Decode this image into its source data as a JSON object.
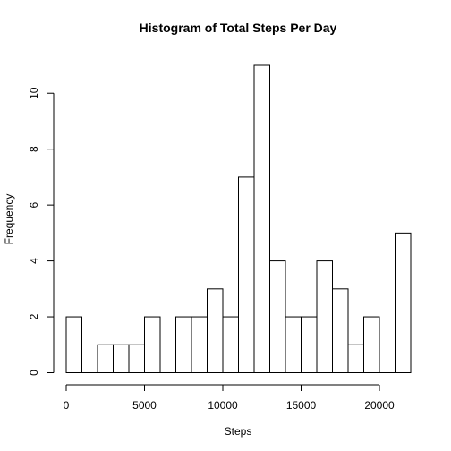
{
  "chart_data": {
    "type": "bar",
    "title": "Histogram of Total Steps Per Day",
    "xlabel": "Steps",
    "ylabel": "Frequency",
    "bin_width": 1000,
    "bins": [
      {
        "start": 0,
        "end": 1000,
        "count": 2
      },
      {
        "start": 1000,
        "end": 2000,
        "count": 0
      },
      {
        "start": 2000,
        "end": 3000,
        "count": 1
      },
      {
        "start": 3000,
        "end": 4000,
        "count": 1
      },
      {
        "start": 4000,
        "end": 5000,
        "count": 1
      },
      {
        "start": 5000,
        "end": 6000,
        "count": 2
      },
      {
        "start": 6000,
        "end": 7000,
        "count": 0
      },
      {
        "start": 7000,
        "end": 8000,
        "count": 2
      },
      {
        "start": 8000,
        "end": 9000,
        "count": 2
      },
      {
        "start": 9000,
        "end": 10000,
        "count": 3
      },
      {
        "start": 10000,
        "end": 11000,
        "count": 2
      },
      {
        "start": 11000,
        "end": 12000,
        "count": 7
      },
      {
        "start": 12000,
        "end": 13000,
        "count": 11
      },
      {
        "start": 13000,
        "end": 14000,
        "count": 4
      },
      {
        "start": 14000,
        "end": 15000,
        "count": 2
      },
      {
        "start": 15000,
        "end": 16000,
        "count": 2
      },
      {
        "start": 16000,
        "end": 17000,
        "count": 4
      },
      {
        "start": 17000,
        "end": 18000,
        "count": 3
      },
      {
        "start": 18000,
        "end": 19000,
        "count": 1
      },
      {
        "start": 19000,
        "end": 20000,
        "count": 2
      },
      {
        "start": 20000,
        "end": 21000,
        "count": 0
      },
      {
        "start": 21000,
        "end": 22000,
        "count": 5
      }
    ],
    "xlim": [
      0,
      22000
    ],
    "ylim": [
      0,
      11
    ],
    "x_ticks": [
      0,
      5000,
      10000,
      15000,
      20000
    ],
    "x_tick_labels": [
      "0",
      "5000",
      "10000",
      "15000",
      "20000"
    ],
    "y_ticks": [
      0,
      2,
      4,
      6,
      8,
      10
    ],
    "y_tick_labels": [
      "0",
      "2",
      "4",
      "6",
      "8",
      "10"
    ],
    "grid": false,
    "legend": "none"
  }
}
